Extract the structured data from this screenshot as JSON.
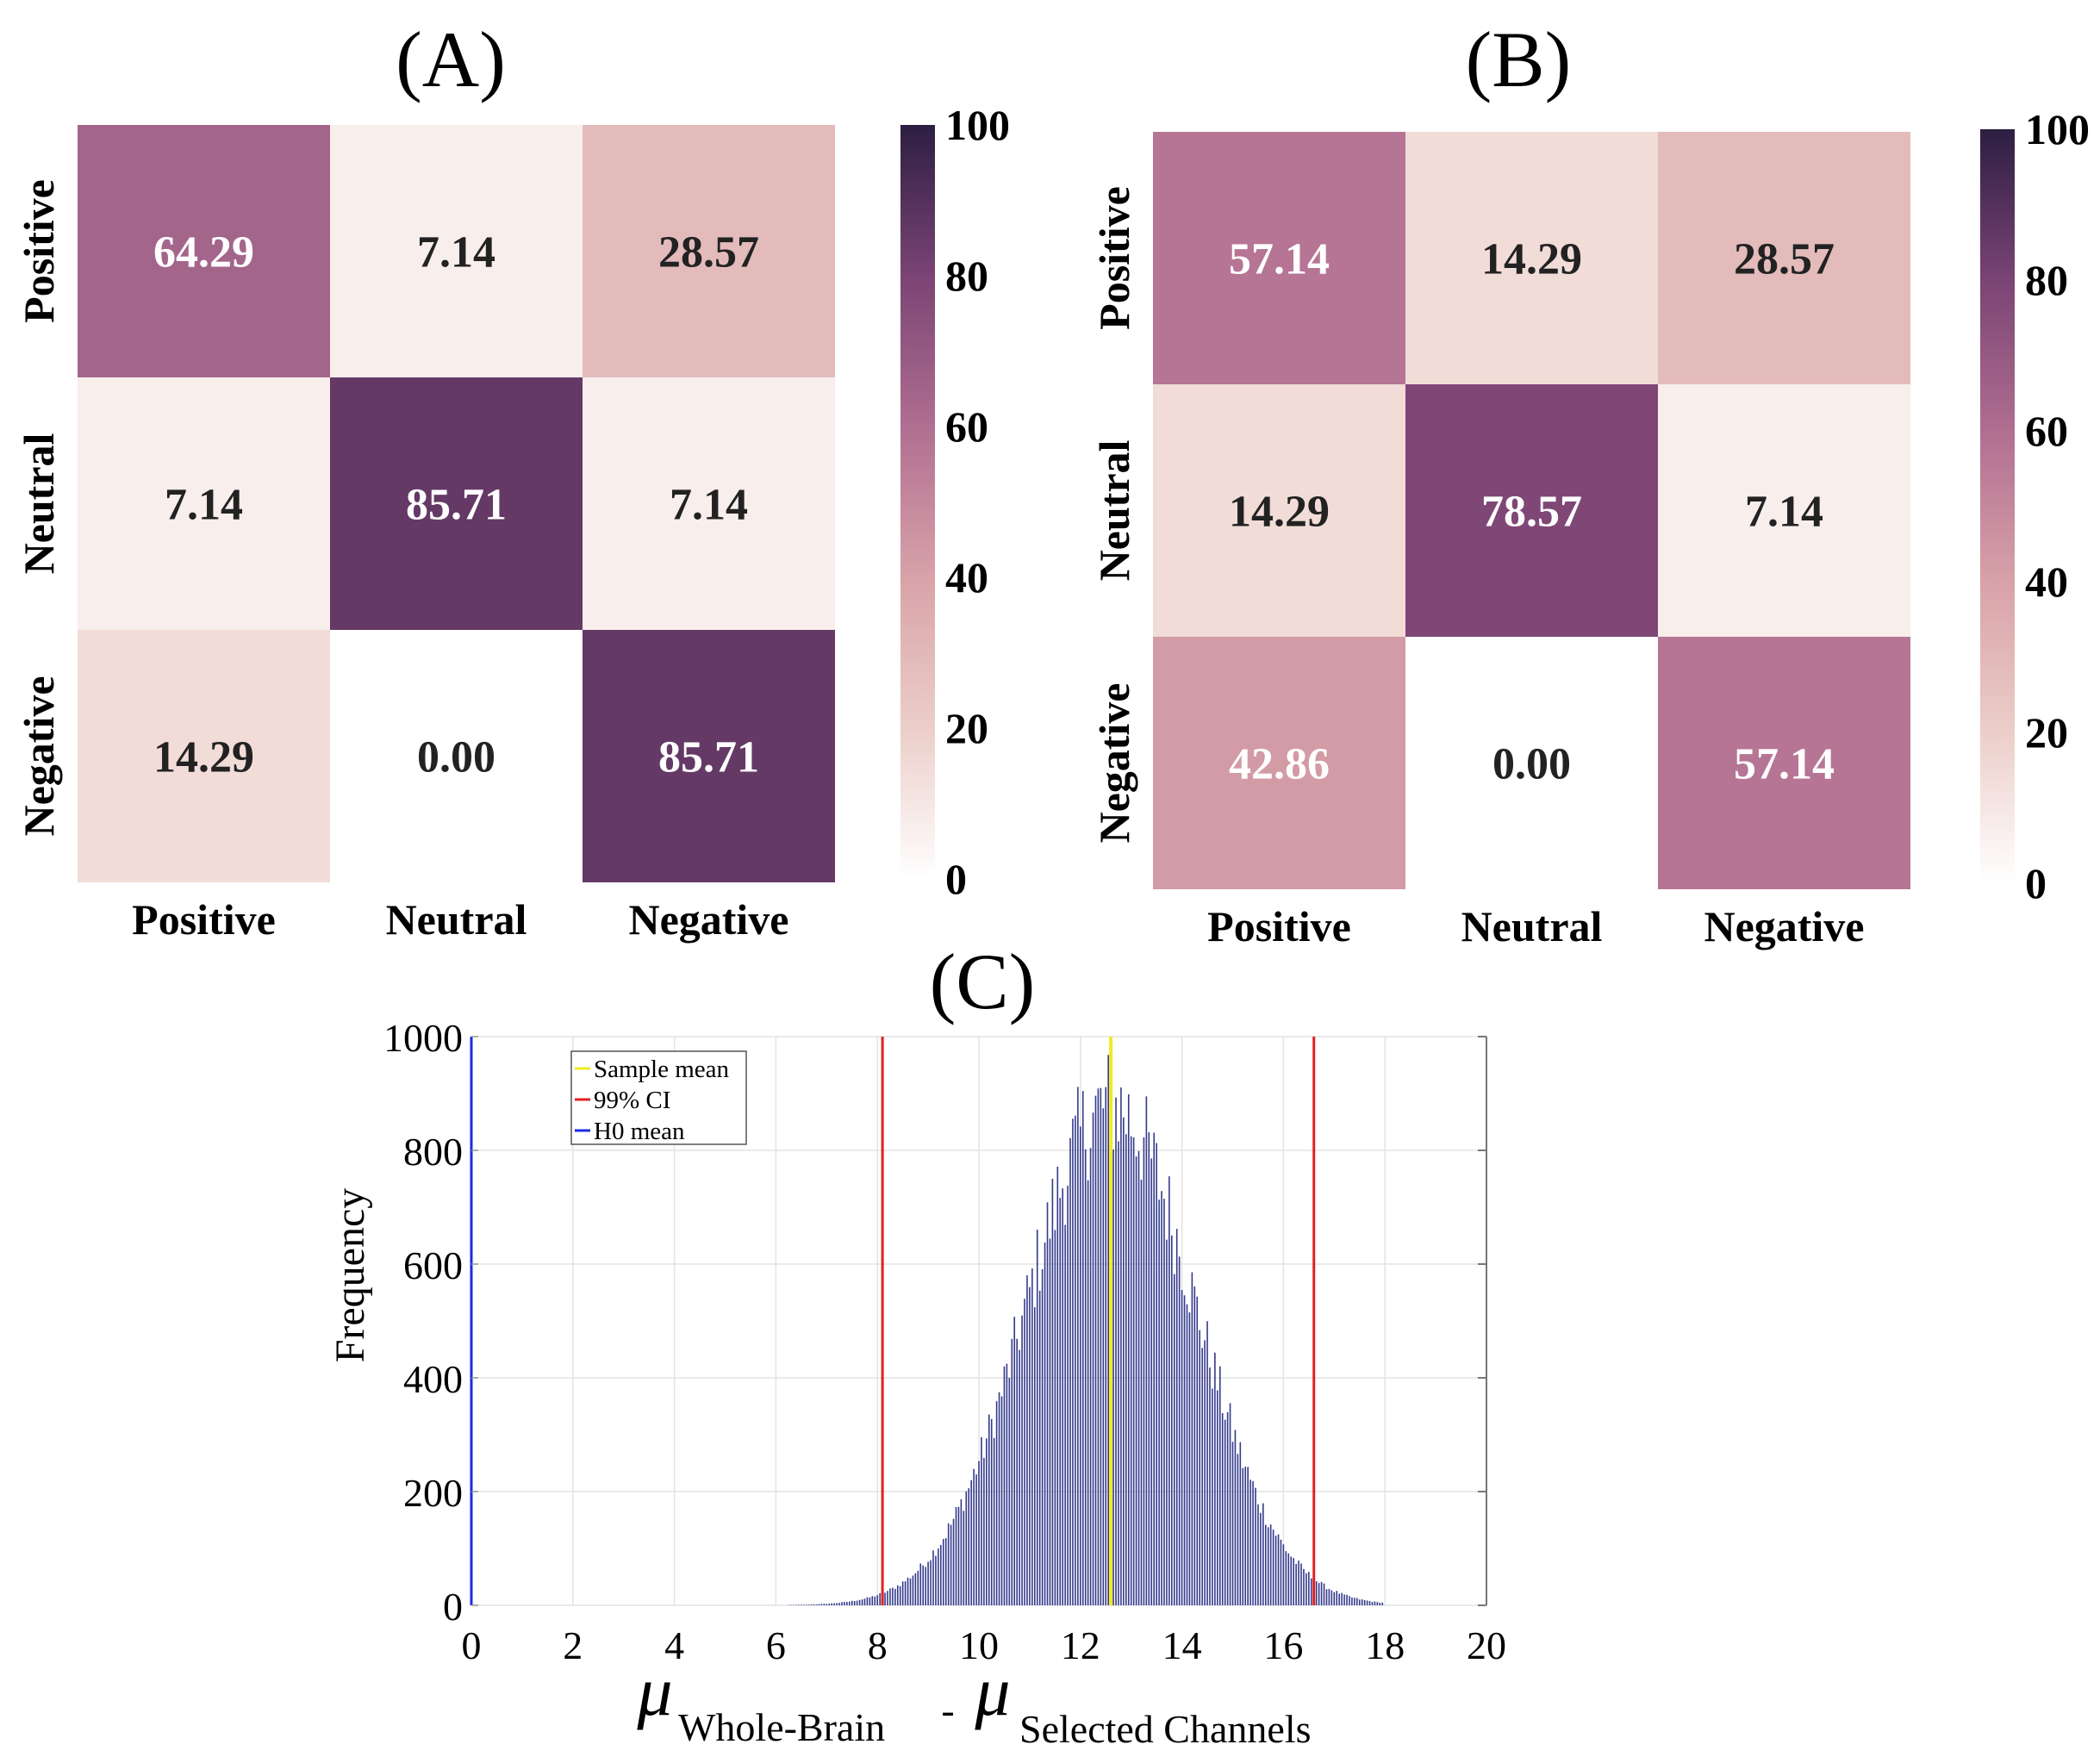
{
  "chart_data": [
    {
      "type": "heatmap",
      "panel_label": "(A)",
      "row_labels": [
        "Positive",
        "Neutral",
        "Negative"
      ],
      "col_labels": [
        "Positive",
        "Neutral",
        "Negative"
      ],
      "values": [
        [
          64.29,
          7.14,
          28.57
        ],
        [
          7.14,
          85.71,
          7.14
        ],
        [
          14.29,
          0.0,
          85.71
        ]
      ],
      "value_labels": [
        [
          "64.29",
          "7.14",
          "28.57"
        ],
        [
          "7.14",
          "85.71",
          "7.14"
        ],
        [
          "14.29",
          "0.00",
          "85.71"
        ]
      ],
      "colorbar": {
        "range": [
          0,
          100
        ],
        "ticks": [
          "0",
          "20",
          "40",
          "60",
          "80",
          "100"
        ]
      }
    },
    {
      "type": "heatmap",
      "panel_label": "(B)",
      "row_labels": [
        "Positive",
        "Neutral",
        "Negative"
      ],
      "col_labels": [
        "Positive",
        "Neutral",
        "Negative"
      ],
      "values": [
        [
          57.14,
          14.29,
          28.57
        ],
        [
          14.29,
          78.57,
          7.14
        ],
        [
          42.86,
          0.0,
          57.14
        ]
      ],
      "value_labels": [
        [
          "57.14",
          "14.29",
          "28.57"
        ],
        [
          "14.29",
          "78.57",
          "7.14"
        ],
        [
          "42.86",
          "0.00",
          "57.14"
        ]
      ],
      "colorbar": {
        "range": [
          0,
          100
        ],
        "ticks": [
          "0",
          "20",
          "40",
          "60",
          "80",
          "100"
        ]
      }
    },
    {
      "type": "bar",
      "subtype": "histogram",
      "panel_label": "(C)",
      "ylabel": "Frequency",
      "xlabel": {
        "mu1": "μ",
        "sub1": "Whole-Brain",
        "dash": "-",
        "mu2": "μ",
        "sub2": "Selected Channels"
      },
      "xlim": [
        0,
        20
      ],
      "ylim": [
        0,
        1000
      ],
      "xticks": [
        "0",
        "2",
        "4",
        "6",
        "8",
        "10",
        "12",
        "14",
        "16",
        "18",
        "20"
      ],
      "yticks": [
        "0",
        "200",
        "400",
        "600",
        "800",
        "1000"
      ],
      "grid": true,
      "legend": {
        "placement": "top-left",
        "entries": [
          {
            "label": "Sample mean",
            "color": "#f0ea20"
          },
          {
            "label": "99% CI",
            "color": "#e02020"
          },
          {
            "label": "H0 mean",
            "color": "#1a2be0"
          }
        ]
      },
      "reference_lines": {
        "sample_mean": 12.6,
        "ci_low": 8.1,
        "ci_high": 16.6,
        "h0_mean": 0
      },
      "distribution": {
        "mean": 12.6,
        "sd": 1.65,
        "peak": 880,
        "min_x": 6.0,
        "max_x": 18.0,
        "bin_width": 0.05
      },
      "bar_color": "#343a8c"
    }
  ]
}
